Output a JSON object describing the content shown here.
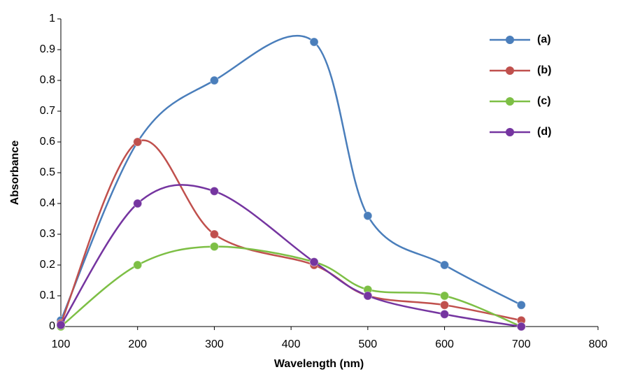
{
  "chart_data": {
    "type": "line",
    "x_label": "Wavelength (nm)",
    "y_label": "Absorbance",
    "x": [
      100,
      200,
      300,
      430,
      500,
      600,
      700
    ],
    "series": [
      {
        "name": "(a)",
        "color": "#4a7ebb",
        "values": [
          0.02,
          0.6,
          0.8,
          0.925,
          0.36,
          0.2,
          0.07
        ]
      },
      {
        "name": "(b)",
        "color": "#c0504d",
        "values": [
          0.01,
          0.6,
          0.3,
          0.2,
          0.1,
          0.07,
          0.02
        ]
      },
      {
        "name": "(c)",
        "color": "#7dbf45",
        "values": [
          0,
          0.2,
          0.26,
          0.21,
          0.12,
          0.1,
          0
        ]
      },
      {
        "name": "(d)",
        "color": "#7535a0",
        "values": [
          0.005,
          0.4,
          0.44,
          0.21,
          0.1,
          0.04,
          0
        ]
      }
    ],
    "xlim": [
      100,
      800
    ],
    "xticks": [
      100,
      200,
      300,
      400,
      500,
      600,
      700,
      800
    ],
    "ylim": [
      0,
      1
    ],
    "yticks": [
      0,
      0.1,
      0.2,
      0.3,
      0.4,
      0.5,
      0.6,
      0.7,
      0.8,
      0.9,
      1
    ],
    "smooth": true,
    "legend": "top-right"
  }
}
